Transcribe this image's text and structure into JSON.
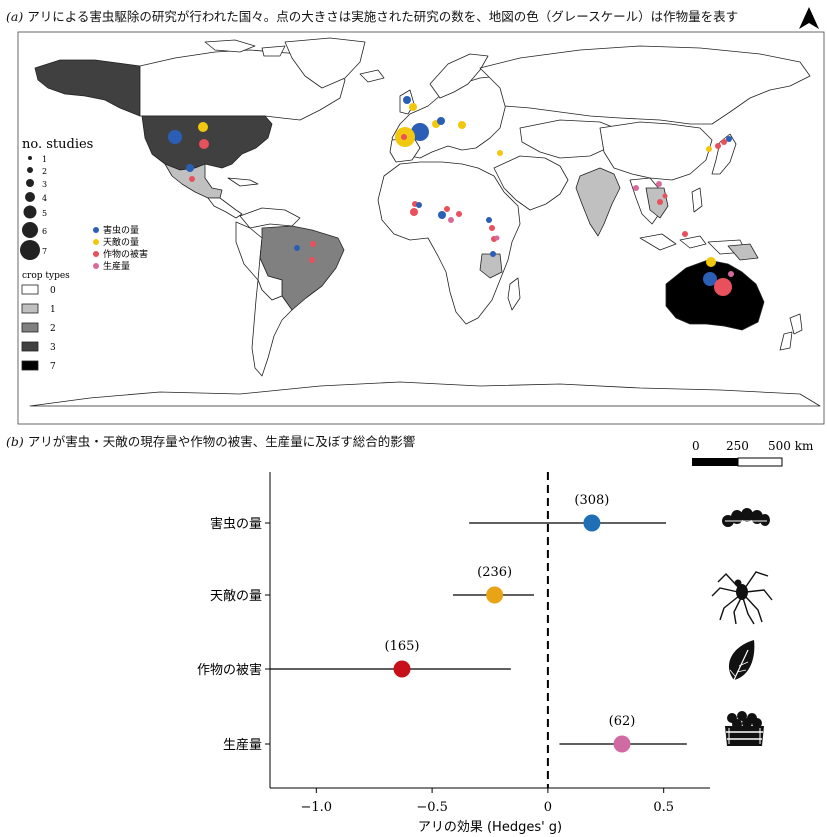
{
  "panel_a": {
    "label": "(a)",
    "title": "アリによる害虫駆除の研究が行われた国々。点の大きさは実施された研究の数を、地図の色（グレースケール）は作物量を表す",
    "north_icon": "north-arrow-icon",
    "legend_studies": {
      "title": "no. studies",
      "values": [
        "1",
        "2",
        "3",
        "4",
        "5",
        "6",
        "7"
      ]
    },
    "legend_categories": [
      {
        "label": "害虫の量",
        "color": "#2b5fb5"
      },
      {
        "label": "天敵の量",
        "color": "#f2c80f"
      },
      {
        "label": "作物の被害",
        "color": "#e8505b"
      },
      {
        "label": "生産量",
        "color": "#d86a9a"
      }
    ],
    "legend_crops": {
      "title": "crop types",
      "items": [
        {
          "label": "0",
          "color": "#ffffff"
        },
        {
          "label": "1",
          "color": "#c0c0c0"
        },
        {
          "label": "2",
          "color": "#808080"
        },
        {
          "label": "3",
          "color": "#404040"
        },
        {
          "label": "7",
          "color": "#000000"
        }
      ]
    },
    "scale": {
      "ticks": [
        "0",
        "250",
        "500 km"
      ]
    }
  },
  "panel_b": {
    "label": "(b)",
    "title": "アリが害虫・天敵の現存量や作物の被害、生産量に及ぼす総合的影響"
  },
  "chart_data": {
    "type": "scatter",
    "xlabel": "アリの効果 (Hedges' g)",
    "ylabel": "",
    "xlim": [
      -1.2,
      0.7
    ],
    "xticks": [
      "−1.0",
      "−0.5",
      "0",
      "0.5"
    ],
    "xtick_values": [
      -1.0,
      -0.5,
      0,
      0.5
    ],
    "reference_line_x": 0,
    "categories": [
      "害虫の量",
      "天敵の量",
      "作物の被害",
      "生産量"
    ],
    "estimates": [
      0.19,
      -0.23,
      -0.63,
      0.32
    ],
    "ci_low": [
      -0.34,
      -0.41,
      -1.2,
      0.05
    ],
    "ci_high": [
      0.51,
      -0.06,
      -0.16,
      0.6
    ],
    "n_labels": [
      "(308)",
      "(236)",
      "(165)",
      "(62)"
    ],
    "colors": [
      "#1f6fb5",
      "#e8a317",
      "#c8101a",
      "#cf6aa3"
    ],
    "icons": [
      "caterpillar-icon",
      "spider-icon",
      "leaf-icon",
      "fruit-crate-icon"
    ]
  }
}
